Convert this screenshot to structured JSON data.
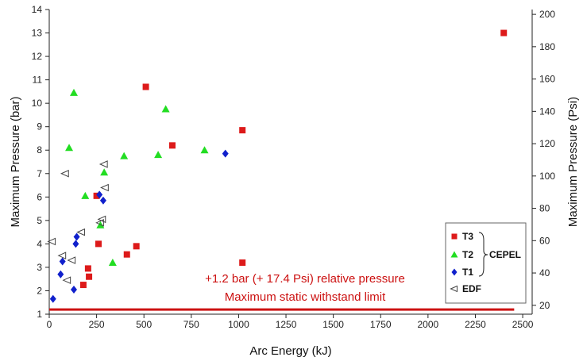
{
  "chart_data": {
    "type": "scatter",
    "title": "",
    "xlabel": "Arc Energy (kJ)",
    "ylabel": "Maximum Pressure (bar)",
    "y2label": "Maximum Pressure (Psi)",
    "xlim": [
      0,
      2550
    ],
    "ylim": [
      1,
      14
    ],
    "y2lim": [
      14.5,
      203
    ],
    "x_ticks": [
      "0",
      "250",
      "500",
      "750",
      "1000",
      "1250",
      "1500",
      "1750",
      "2000",
      "2250",
      "2500"
    ],
    "y_ticks": [
      "1",
      "2",
      "3",
      "4",
      "5",
      "6",
      "7",
      "8",
      "9",
      "10",
      "11",
      "12",
      "13",
      "14"
    ],
    "y2_ticks": [
      "20",
      "40",
      "60",
      "80",
      "100",
      "120",
      "140",
      "160",
      "180",
      "200"
    ],
    "grid": false,
    "legend_position": "bottom-right",
    "legend_group_label": "CEPEL",
    "series": [
      {
        "name": "T3",
        "marker": "square",
        "color": "#dd1a1a",
        "points": [
          [
            2400,
            13.0
          ],
          [
            510,
            10.7
          ],
          [
            1020,
            8.85
          ],
          [
            650,
            8.2
          ],
          [
            250,
            6.05
          ],
          [
            460,
            3.9
          ],
          [
            260,
            4.0
          ],
          [
            410,
            3.55
          ],
          [
            1020,
            3.2
          ],
          [
            205,
            2.95
          ],
          [
            210,
            2.6
          ],
          [
            180,
            2.25
          ]
        ]
      },
      {
        "name": "T2",
        "marker": "triangle",
        "color": "#22dd22",
        "points": [
          [
            130,
            10.45
          ],
          [
            615,
            9.75
          ],
          [
            105,
            8.1
          ],
          [
            820,
            8.0
          ],
          [
            575,
            7.8
          ],
          [
            395,
            7.75
          ],
          [
            290,
            7.05
          ],
          [
            190,
            6.05
          ],
          [
            270,
            4.8
          ],
          [
            335,
            3.2
          ]
        ]
      },
      {
        "name": "T1",
        "marker": "diamond",
        "color": "#1020cc",
        "points": [
          [
            930,
            7.85
          ],
          [
            265,
            6.1
          ],
          [
            285,
            5.85
          ],
          [
            145,
            4.3
          ],
          [
            140,
            4.0
          ],
          [
            70,
            3.25
          ],
          [
            60,
            2.7
          ],
          [
            130,
            2.05
          ],
          [
            20,
            1.65
          ]
        ]
      },
      {
        "name": "EDF",
        "marker": "triangle-left",
        "color": "#444444",
        "points": [
          [
            85,
            7.0
          ],
          [
            290,
            7.4
          ],
          [
            295,
            6.4
          ],
          [
            280,
            5.05
          ],
          [
            270,
            4.9
          ],
          [
            170,
            4.5
          ],
          [
            15,
            4.1
          ],
          [
            70,
            3.5
          ],
          [
            120,
            3.3
          ],
          [
            95,
            2.45
          ]
        ]
      }
    ],
    "reference_line": {
      "y": 1.2,
      "color": "#cc1111",
      "label_line1": "+1.2 bar (+ 17.4 Psi) relative pressure",
      "label_line2": "Maximum static withstand limit"
    }
  }
}
